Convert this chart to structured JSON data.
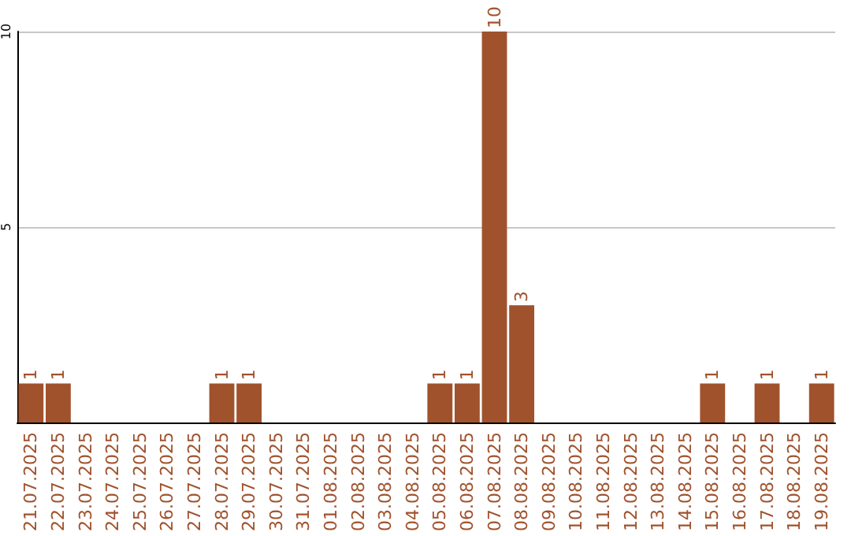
{
  "chart_data": {
    "type": "bar",
    "categories": [
      "21.07.2025",
      "22.07.2025",
      "23.07.2025",
      "24.07.2025",
      "25.07.2025",
      "26.07.2025",
      "27.07.2025",
      "28.07.2025",
      "29.07.2025",
      "30.07.2025",
      "31.07.2025",
      "01.08.2025",
      "02.08.2025",
      "03.08.2025",
      "04.08.2025",
      "05.08.2025",
      "06.08.2025",
      "07.08.2025",
      "08.08.2025",
      "09.08.2025",
      "10.08.2025",
      "11.08.2025",
      "12.08.2025",
      "13.08.2025",
      "14.08.2025",
      "15.08.2025",
      "16.08.2025",
      "17.08.2025",
      "18.08.2025",
      "19.08.2025"
    ],
    "values": [
      1,
      1,
      0,
      0,
      0,
      0,
      0,
      1,
      1,
      0,
      0,
      0,
      0,
      0,
      0,
      1,
      1,
      10,
      3,
      0,
      0,
      0,
      0,
      0,
      0,
      1,
      0,
      1,
      0,
      1
    ],
    "value_labels": [
      "1",
      "1",
      null,
      null,
      null,
      null,
      null,
      "1",
      "1",
      null,
      null,
      null,
      null,
      null,
      null,
      "1",
      "1",
      "10",
      "3",
      null,
      null,
      null,
      null,
      null,
      null,
      "1",
      null,
      "1",
      null,
      "1"
    ],
    "color": "#a0522d",
    "ylim": [
      0,
      10
    ],
    "yticks": [
      {
        "value": 0,
        "label": null
      },
      5,
      10
    ],
    "grid": "y"
  }
}
